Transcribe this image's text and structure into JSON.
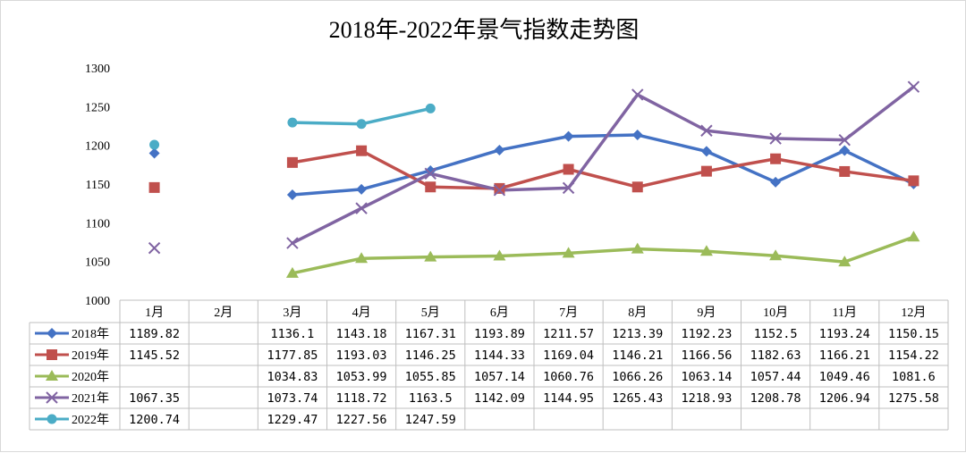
{
  "chart_data": {
    "type": "line",
    "title": "2018年-2022年景气指数走势图",
    "categories": [
      "1月",
      "2月",
      "3月",
      "4月",
      "5月",
      "6月",
      "7月",
      "8月",
      "9月",
      "10月",
      "11月",
      "12月"
    ],
    "ylim": [
      1000,
      1300
    ],
    "y_ticks": [
      "1000",
      "1050",
      "1100",
      "1150",
      "1200",
      "1250",
      "1300"
    ],
    "grid": false,
    "legend": "data-table",
    "series": [
      {
        "name": "2018年",
        "color": "#4472c4",
        "marker": "diamond",
        "values": [
          1189.82,
          null,
          1136.1,
          1143.18,
          1167.31,
          1193.89,
          1211.57,
          1213.39,
          1192.23,
          1152.5,
          1193.24,
          1150.15
        ],
        "labels": [
          "1189.82",
          "",
          "1136.1",
          "1143.18",
          "1167.31",
          "1193.89",
          "1211.57",
          "1213.39",
          "1192.23",
          "1152.5",
          "1193.24",
          "1150.15"
        ]
      },
      {
        "name": "2019年",
        "color": "#c0504d",
        "marker": "square",
        "values": [
          1145.52,
          null,
          1177.85,
          1193.03,
          1146.25,
          1144.33,
          1169.04,
          1146.21,
          1166.56,
          1182.63,
          1166.21,
          1154.22
        ],
        "labels": [
          "1145.52",
          "",
          "1177.85",
          "1193.03",
          "1146.25",
          "1144.33",
          "1169.04",
          "1146.21",
          "1166.56",
          "1182.63",
          "1166.21",
          "1154.22"
        ]
      },
      {
        "name": "2020年",
        "color": "#9bbb59",
        "marker": "triangle",
        "values": [
          null,
          null,
          1034.83,
          1053.99,
          1055.85,
          1057.14,
          1060.76,
          1066.26,
          1063.14,
          1057.44,
          1049.46,
          1081.6
        ],
        "labels": [
          "",
          "",
          "1034.83",
          "1053.99",
          "1055.85",
          "1057.14",
          "1060.76",
          "1066.26",
          "1063.14",
          "1057.44",
          "1049.46",
          "1081.6"
        ]
      },
      {
        "name": "2021年",
        "color": "#8064a2",
        "marker": "x",
        "values": [
          1067.35,
          null,
          1073.74,
          1118.72,
          1163.5,
          1142.09,
          1144.95,
          1265.43,
          1218.93,
          1208.78,
          1206.94,
          1275.58
        ],
        "labels": [
          "1067.35",
          "",
          "1073.74",
          "1118.72",
          "1163.5",
          "1142.09",
          "1144.95",
          "1265.43",
          "1218.93",
          "1208.78",
          "1206.94",
          "1275.58"
        ]
      },
      {
        "name": "2022年",
        "color": "#4bacc6",
        "marker": "circle",
        "values": [
          1200.74,
          null,
          1229.47,
          1227.56,
          1247.59,
          null,
          null,
          null,
          null,
          null,
          null,
          null
        ],
        "labels": [
          "1200.74",
          "",
          "1229.47",
          "1227.56",
          "1247.59",
          "",
          "",
          "",
          "",
          "",
          "",
          ""
        ]
      }
    ]
  },
  "colors": {
    "axis": "#bfbfbf",
    "table_border": "#bfbfbf",
    "frame": "#d9d9d9"
  }
}
